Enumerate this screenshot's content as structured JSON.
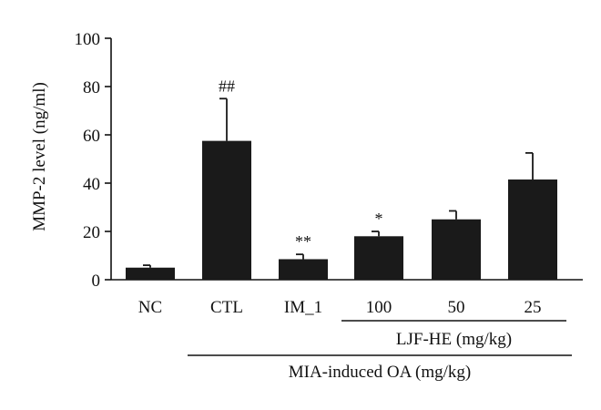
{
  "chart_data": {
    "type": "bar",
    "ylabel": "MMP-2 level (ng/ml)",
    "xlabel": "",
    "ylim": [
      0,
      100
    ],
    "yticks": [
      0,
      20,
      40,
      60,
      80,
      100
    ],
    "grid": false,
    "categories": [
      "NC",
      "CTL",
      "IM_1",
      "100",
      "50",
      "25"
    ],
    "values": [
      5,
      57.5,
      8.5,
      18,
      25,
      41.5
    ],
    "errors": [
      1,
      17.5,
      2,
      2,
      3.5,
      11
    ],
    "significance": [
      "",
      "##",
      "**",
      "*",
      "",
      ""
    ],
    "groups": [
      {
        "label": "LJF-HE (mg/kg)",
        "from": 3,
        "to": 5
      },
      {
        "label": "MIA-induced OA (mg/kg)",
        "from": 1,
        "to": 5
      }
    ],
    "colors": {
      "bar": "#1a1a1a",
      "axis": "#111111"
    }
  }
}
